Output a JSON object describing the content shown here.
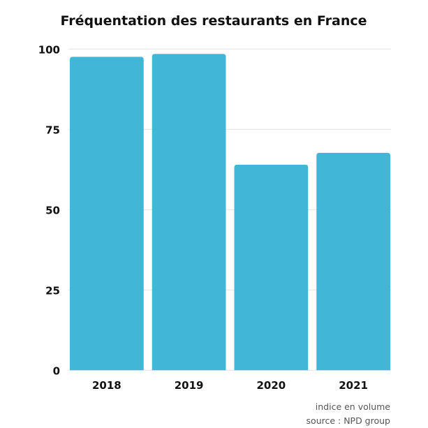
{
  "chart_data": {
    "type": "bar",
    "title": "Fréquentation des restaurants en France",
    "categories": [
      "2018",
      "2019",
      "2020",
      "2021"
    ],
    "values": [
      97.6,
      98.5,
      64.0,
      67.7
    ],
    "xlabel": "",
    "ylabel": "",
    "ylim": [
      0,
      100
    ],
    "yticks": [
      "0",
      "25",
      "50",
      "75",
      "100"
    ],
    "grid": true,
    "bar_color": "#42b6d6",
    "notes": [
      "indice en volume",
      "source : NPD group"
    ]
  }
}
